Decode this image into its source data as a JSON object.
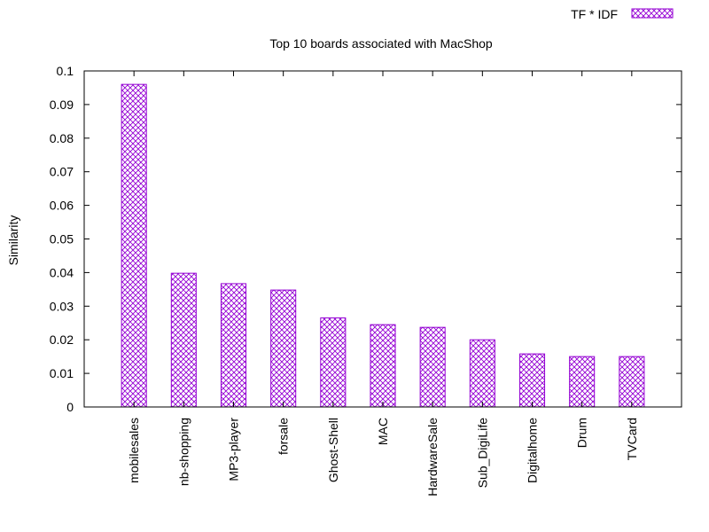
{
  "chart_data": {
    "type": "bar",
    "title": "Top 10 boards associated with MacShop",
    "xlabel": "",
    "ylabel": "Similarity",
    "ylim": [
      0,
      0.1
    ],
    "yticks": [
      "0",
      "0.01",
      "0.02",
      "0.03",
      "0.04",
      "0.05",
      "0.06",
      "0.07",
      "0.08",
      "0.09",
      "0.1"
    ],
    "categories": [
      "mobilesales",
      "nb-shopping",
      "MP3-player",
      "forsale",
      "Ghost-Shell",
      "MAC",
      "HardwareSale",
      "Sub_DigiLife",
      "Digitalhome",
      "Drum",
      "TVCard"
    ],
    "series": [
      {
        "name": "TF * IDF",
        "values": [
          0.096,
          0.0398,
          0.0367,
          0.0348,
          0.0265,
          0.0245,
          0.0237,
          0.02,
          0.0158,
          0.015,
          0.015
        ]
      }
    ],
    "legend_position": "top-right",
    "bar_color": "#9400d3",
    "bar_fill": "crosshatch",
    "grid": false
  }
}
